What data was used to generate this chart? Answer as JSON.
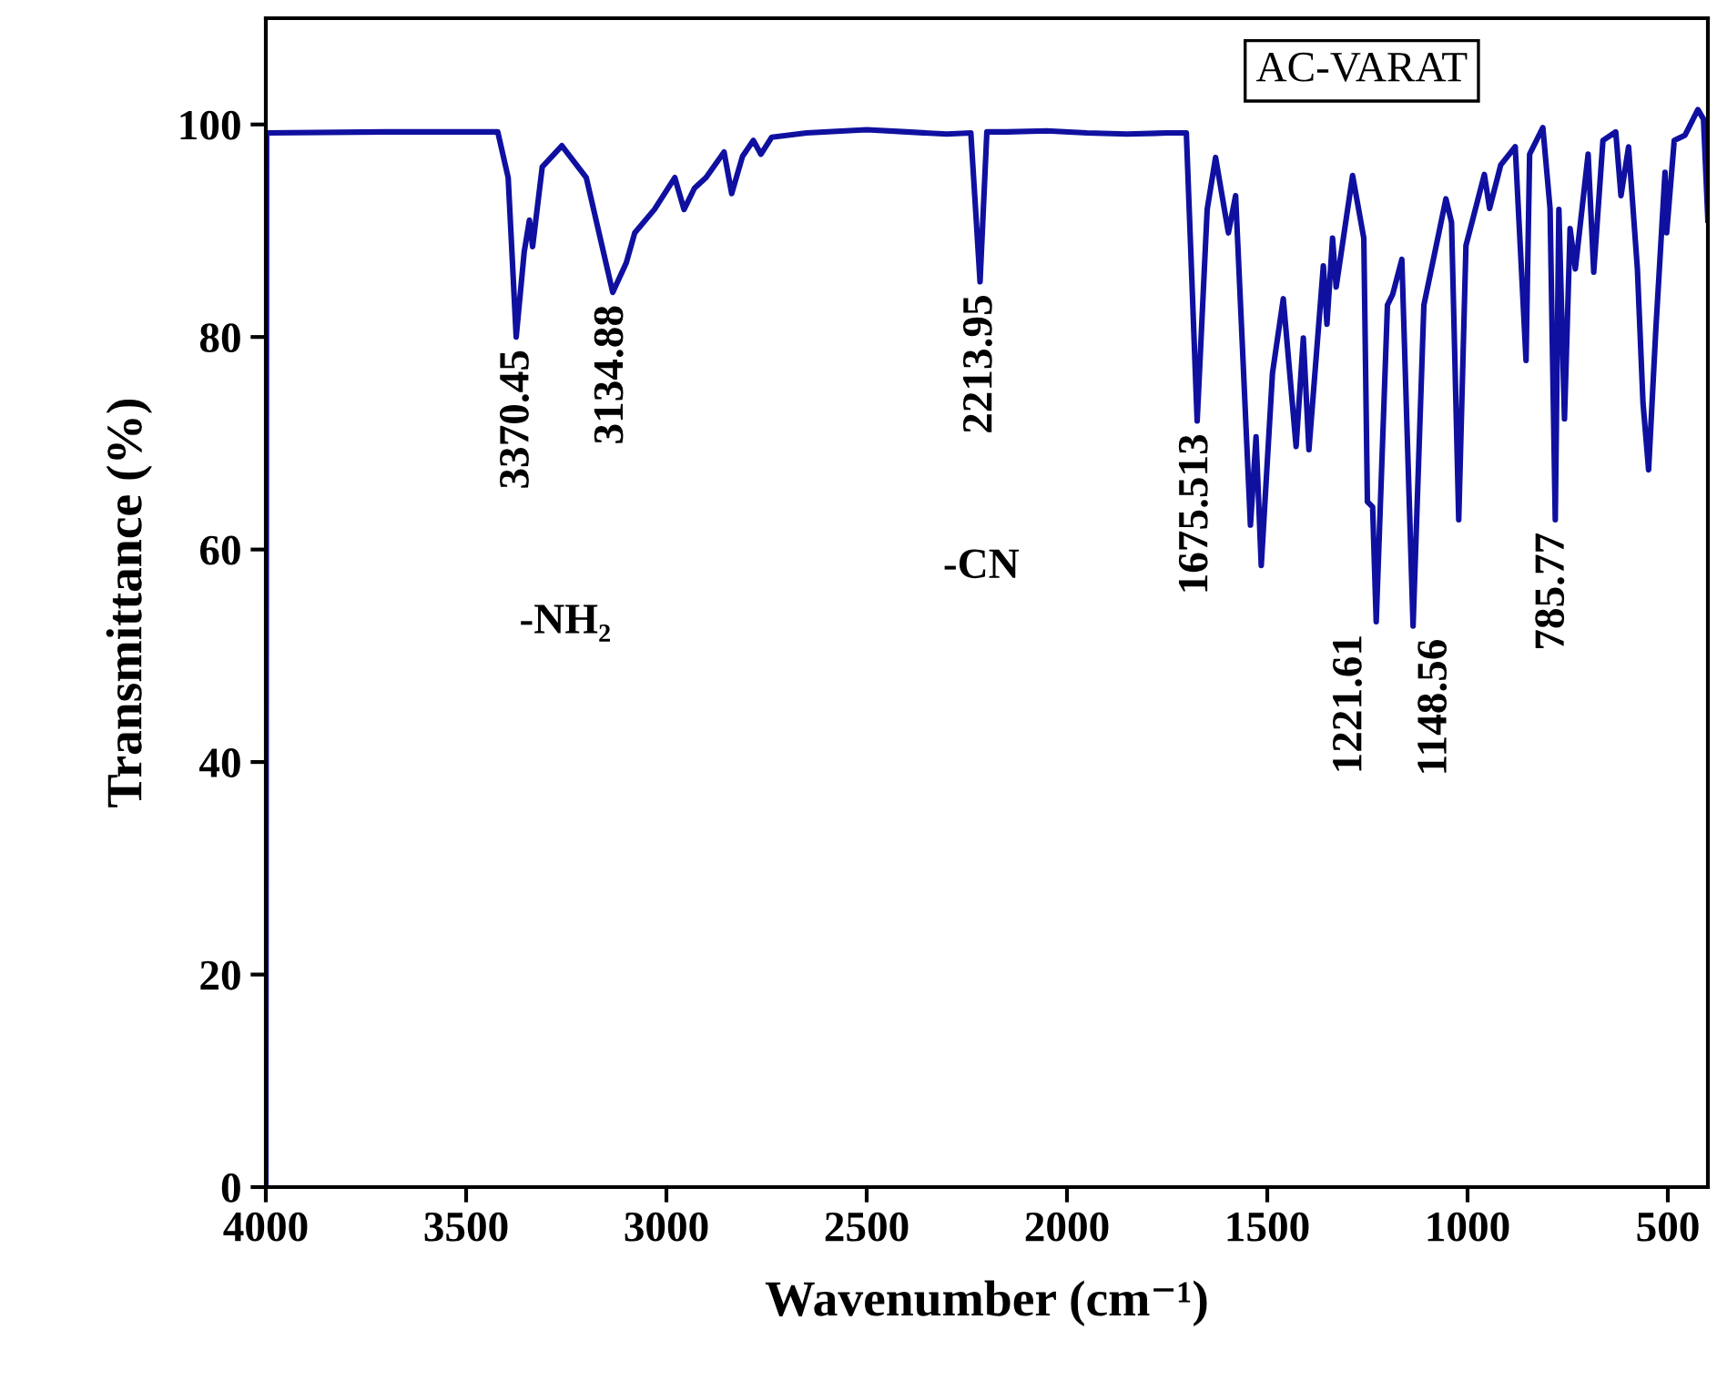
{
  "chart_data": {
    "type": "line",
    "title": "AC-VARAT",
    "xlabel": "Wavenumber (cm⁻¹)",
    "ylabel": "Transmittance (%)",
    "x": [
      4000,
      3998,
      3700,
      3500,
      3421,
      3395,
      3375,
      3355,
      3342,
      3334,
      3310,
      3261,
      3200,
      3134,
      3100,
      3079,
      3030,
      2979,
      2956,
      2930,
      2901,
      2856,
      2837,
      2810,
      2783,
      2764,
      2737,
      2650,
      2500,
      2400,
      2300,
      2240,
      2217,
      2200,
      2150,
      2050,
      1950,
      1850,
      1750,
      1702,
      1675,
      1650,
      1629,
      1597,
      1579,
      1542,
      1528,
      1515,
      1487,
      1460,
      1428,
      1410,
      1396,
      1360,
      1351,
      1337,
      1328,
      1287,
      1259,
      1250,
      1237,
      1228,
      1200,
      1187,
      1164,
      1136,
      1109,
      1054,
      1040,
      1022,
      1004,
      958,
      945,
      917,
      881,
      854,
      845,
      812,
      794,
      781,
      772,
      758,
      744,
      731,
      699,
      685,
      662,
      630,
      617,
      598,
      576,
      562,
      548,
      530,
      507,
      503,
      484,
      457,
      425,
      411,
      400
    ],
    "values": [
      0,
      99.2,
      99.3,
      99.3,
      99.3,
      95,
      80.0,
      88,
      91,
      88.5,
      96,
      98.0,
      95,
      84.2,
      87,
      89.8,
      92,
      95.0,
      92,
      94,
      95,
      97.4,
      93.5,
      97,
      98.5,
      97.2,
      98.8,
      99.2,
      99.5,
      99.3,
      99.1,
      99.2,
      85.2,
      99.3,
      99.3,
      99.4,
      99.2,
      99.1,
      99.2,
      99.2,
      72.1,
      92,
      96.9,
      89.8,
      93.3,
      62.3,
      70.6,
      58.5,
      76.6,
      83.6,
      69.7,
      79.9,
      69.4,
      86.7,
      81.2,
      89.3,
      84.7,
      95.2,
      89.3,
      64.5,
      64.0,
      53.2,
      83.0,
      84.0,
      87.3,
      52.8,
      83.0,
      93.0,
      90.8,
      62.8,
      88.6,
      95.3,
      92.1,
      96.2,
      97.9,
      77.8,
      97.2,
      99.7,
      92.1,
      62.8,
      92.0,
      72.3,
      90.2,
      86.4,
      97.2,
      86.1,
      98.5,
      99.3,
      93.3,
      97.9,
      86.4,
      73.8,
      67.5,
      80.7,
      95.5,
      89.8,
      98.5,
      99.0,
      101.4,
      100.5,
      91
    ],
    "color": "#1010a0",
    "xlim": [
      4000,
      400
    ],
    "ylim": [
      0,
      110
    ],
    "xticks": [
      4000,
      3500,
      3000,
      2500,
      2000,
      1500,
      1000,
      500
    ],
    "yticks": [
      0,
      20,
      40,
      60,
      80,
      100
    ],
    "grid": false,
    "legend": false,
    "annotations": [
      {
        "text": "3370.45",
        "x": 3370.45,
        "y": 80.0
      },
      {
        "text": "3134.88",
        "x": 3134.88,
        "y": 84.2
      },
      "-NH₂",
      {
        "text": "2213.95",
        "x": 2213.95,
        "y": 85.2
      },
      "-CN",
      {
        "text": "1675.513",
        "x": 1675.513,
        "y": 72.1
      },
      {
        "text": "1221.61",
        "x": 1221.61,
        "y": 53.2
      },
      {
        "text": "1148.56",
        "x": 1148.56,
        "y": 52.8
      },
      {
        "text": "785.77",
        "x": 785.77,
        "y": 62.8
      }
    ]
  }
}
